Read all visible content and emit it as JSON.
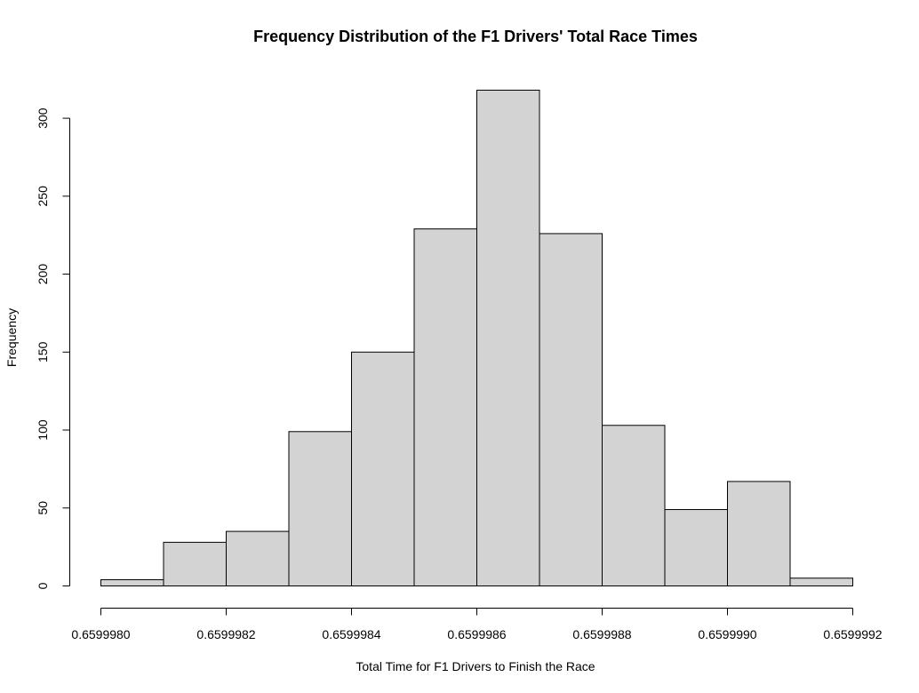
{
  "chart_data": {
    "type": "bar",
    "title": "Frequency Distribution of the F1 Drivers' Total Race Times",
    "xlabel": "Total Time for F1 Drivers to Finish the Race",
    "ylabel": "Frequency",
    "bin_edges": [
      0.659998,
      0.6599981,
      0.6599982,
      0.6599983,
      0.6599984,
      0.6599985,
      0.6599986,
      0.6599987,
      0.6599988,
      0.6599989,
      0.659999,
      0.6599991,
      0.6599992
    ],
    "values": [
      4,
      28,
      35,
      99,
      150,
      229,
      318,
      226,
      103,
      49,
      67,
      5
    ],
    "xlim": [
      0.659998,
      0.6599992
    ],
    "ylim": [
      0,
      318
    ],
    "x_ticks": [
      0.659998,
      0.6599982,
      0.6599984,
      0.6599986,
      0.6599988,
      0.659999,
      0.6599992
    ],
    "x_tick_labels": [
      "0.6599980",
      "0.6599982",
      "0.6599984",
      "0.6599986",
      "0.6599988",
      "0.6599990",
      "0.6599992"
    ],
    "y_ticks": [
      0,
      50,
      100,
      150,
      200,
      250,
      300
    ],
    "y_tick_labels": [
      "0",
      "50",
      "100",
      "150",
      "200",
      "250",
      "300"
    ],
    "bar_color": "#d3d3d3",
    "edge_color": "#000000",
    "grid": false,
    "legend": "none"
  }
}
